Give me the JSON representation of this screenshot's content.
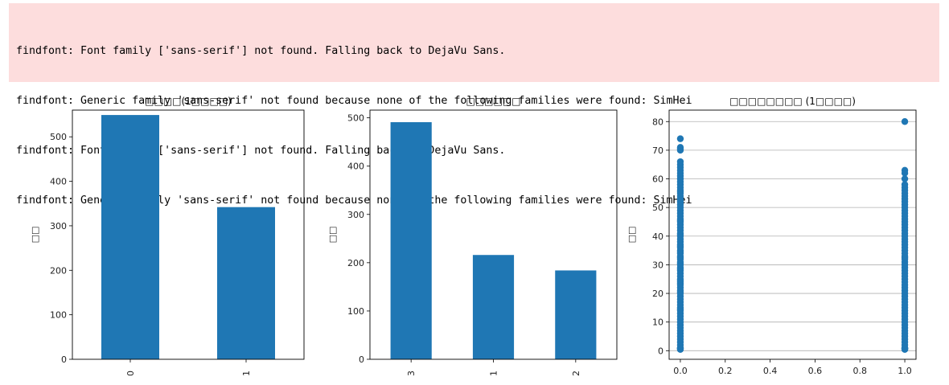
{
  "stderr": {
    "lines": [
      "findfont: Font family ['sans-serif'] not found. Falling back to DejaVu Sans.",
      "findfont: Generic family 'sans-serif' not found because none of the following families were found: SimHei",
      "findfont: Font family ['sans-serif'] not found. Falling back to DejaVu Sans.",
      "findfont: Generic family 'sans-serif' not found because none of the following families were found: SimHei"
    ]
  },
  "colors": {
    "bar": "#1f77b4",
    "stderr_bg": "#fddddd"
  },
  "chart_data": [
    {
      "type": "bar",
      "title": "□□□□(1□□□□)",
      "ylabel": "□□",
      "categories": [
        "0",
        "1"
      ],
      "values": [
        549,
        342
      ],
      "ylim": [
        0,
        560
      ],
      "yticks": [
        0,
        100,
        200,
        300,
        400,
        500
      ],
      "grid": false
    },
    {
      "type": "bar",
      "title": "□□□□□□",
      "ylabel": "□□",
      "categories": [
        "3",
        "1",
        "2"
      ],
      "values": [
        491,
        216,
        184
      ],
      "ylim": [
        0,
        516
      ],
      "yticks": [
        0,
        100,
        200,
        300,
        400,
        500
      ],
      "grid": false
    },
    {
      "type": "scatter",
      "title": "□□□□□□□□ (1□□□□)",
      "ylabel": "□□",
      "xlim": [
        -0.05,
        1.05
      ],
      "ylim": [
        -3,
        84
      ],
      "xticks": [
        "0.0",
        "0.2",
        "0.4",
        "0.6",
        "0.8",
        "1.0"
      ],
      "yticks": [
        0,
        10,
        20,
        30,
        40,
        50,
        60,
        70,
        80
      ],
      "grid": "y",
      "series": [
        {
          "x": 0,
          "y": [
            0.42,
            0.67,
            0.83,
            0.92,
            1,
            2,
            3,
            4,
            5,
            6,
            7,
            8,
            9,
            10,
            11,
            12,
            13,
            14,
            14.5,
            15,
            16,
            17,
            18,
            19,
            20,
            20.5,
            21,
            22,
            23,
            23.5,
            24,
            24.5,
            25,
            26,
            27,
            28,
            28.5,
            29,
            30,
            30.5,
            31,
            32,
            32.5,
            33,
            34,
            34.5,
            35,
            36,
            36.5,
            37,
            38,
            39,
            40,
            40.5,
            41,
            42,
            43,
            44,
            45,
            45.5,
            46,
            47,
            48,
            49,
            50,
            51,
            52,
            53,
            54,
            55,
            55.5,
            56,
            57,
            58,
            59,
            60,
            61,
            62,
            63,
            64,
            65,
            66,
            70,
            70.5,
            71,
            74
          ]
        },
        {
          "x": 1,
          "y": [
            0.42,
            0.67,
            0.75,
            0.83,
            0.92,
            1,
            2,
            3,
            4,
            5,
            6,
            7,
            8,
            9,
            10,
            11,
            12,
            13,
            14,
            15,
            16,
            17,
            18,
            19,
            20,
            21,
            22,
            23,
            24,
            25,
            26,
            27,
            28,
            29,
            30,
            31,
            32,
            32.5,
            33,
            34,
            35,
            36,
            37,
            38,
            39,
            40,
            41,
            42,
            43,
            44,
            45,
            46,
            47,
            48,
            49,
            50,
            51,
            52,
            53,
            54,
            55,
            56,
            57,
            58,
            60,
            62,
            63,
            80
          ]
        }
      ]
    }
  ]
}
